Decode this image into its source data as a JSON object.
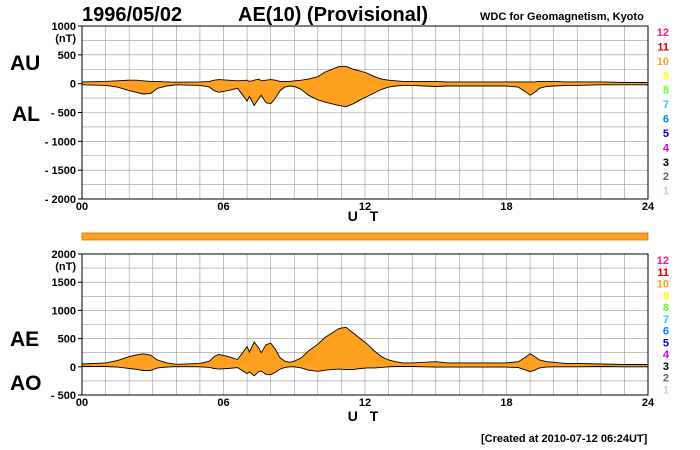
{
  "header": {
    "date": "1996/05/02",
    "title": "AE(10) (Provisional)",
    "source": "WDC for Geomagnetism, Kyoto"
  },
  "footer": {
    "created": "[Created at 2010-07-12 06:24UT]"
  },
  "colors": {
    "fill": "#ffa020",
    "bar": "#ffa020",
    "grid": "#999999",
    "line": "#000000"
  },
  "level_scale": [
    {
      "label": "12",
      "color": "#ff1493"
    },
    {
      "label": "11",
      "color": "#e00000"
    },
    {
      "label": "10",
      "color": "#ffa020"
    },
    {
      "label": "9",
      "color": "#ffff00"
    },
    {
      "label": "8",
      "color": "#66ff33"
    },
    {
      "label": "7",
      "color": "#33ccff"
    },
    {
      "label": "6",
      "color": "#0080ff"
    },
    {
      "label": "5",
      "color": "#0000cc"
    },
    {
      "label": "4",
      "color": "#cc00cc"
    },
    {
      "label": "3",
      "color": "#000000"
    },
    {
      "label": "2",
      "color": "#666666"
    },
    {
      "label": "1",
      "color": "#cccccc"
    }
  ],
  "chart_data": [
    {
      "type": "area",
      "panel": "top",
      "unit_label": "(nT)",
      "side_labels": [
        "AU",
        "AL"
      ],
      "xlabel": "U T",
      "xlim": [
        0,
        24
      ],
      "ylim": [
        -2000,
        1000
      ],
      "x_ticks": [
        "00",
        "06",
        "12",
        "18",
        "24"
      ],
      "y_ticks": [
        "1000",
        "500",
        "0",
        "- 500",
        "- 1000",
        "- 1500",
        "- 2000"
      ],
      "x": [
        0,
        1,
        1.5,
        2,
        2.3,
        2.6,
        2.9,
        3.2,
        3.6,
        4,
        5,
        5.4,
        5.6,
        5.8,
        6.2,
        6.6,
        7,
        7.1,
        7.3,
        7.5,
        7.6,
        7.8,
        8,
        8.2,
        8.4,
        8.6,
        8.8,
        9,
        9.3,
        9.6,
        10,
        10.3,
        10.6,
        10.9,
        11.2,
        11.5,
        11.8,
        12.1,
        12.4,
        12.7,
        13,
        13.3,
        13.6,
        14,
        14.5,
        15,
        15.5,
        16,
        16.5,
        17,
        17.5,
        18,
        18.5,
        18.8,
        19,
        19.2,
        19.4,
        19.7,
        20,
        20.5,
        21,
        22,
        23,
        24
      ],
      "series": [
        {
          "name": "AU",
          "values": [
            30,
            40,
            50,
            60,
            60,
            50,
            40,
            40,
            30,
            25,
            30,
            40,
            60,
            70,
            60,
            50,
            60,
            40,
            60,
            80,
            50,
            60,
            70,
            60,
            40,
            40,
            40,
            50,
            60,
            80,
            120,
            200,
            250,
            300,
            300,
            250,
            220,
            180,
            120,
            80,
            60,
            50,
            40,
            40,
            40,
            40,
            30,
            30,
            30,
            30,
            30,
            30,
            30,
            30,
            30,
            30,
            40,
            40,
            40,
            30,
            30,
            30,
            20,
            20
          ]
        },
        {
          "name": "AL",
          "values": [
            -20,
            -30,
            -60,
            -120,
            -150,
            -180,
            -170,
            -80,
            -40,
            -20,
            -30,
            -60,
            -120,
            -150,
            -120,
            -80,
            -300,
            -220,
            -380,
            -250,
            -200,
            -330,
            -350,
            -250,
            -120,
            -60,
            -40,
            -50,
            -100,
            -200,
            -280,
            -320,
            -350,
            -380,
            -400,
            -350,
            -280,
            -220,
            -160,
            -100,
            -60,
            -40,
            -30,
            -30,
            -40,
            -50,
            -40,
            -40,
            -40,
            -40,
            -40,
            -40,
            -60,
            -140,
            -200,
            -150,
            -80,
            -50,
            -40,
            -30,
            -30,
            -20,
            -20,
            -20
          ]
        }
      ]
    },
    {
      "type": "area",
      "panel": "bottom",
      "unit_label": "(nT)",
      "side_labels": [
        "AE",
        "AO"
      ],
      "xlabel": "U T",
      "xlim": [
        0,
        24
      ],
      "ylim": [
        -500,
        2000
      ],
      "x_ticks": [
        "00",
        "06",
        "12",
        "18",
        "24"
      ],
      "y_ticks": [
        "2000",
        "1500",
        "1000",
        "500",
        "0",
        "- 500"
      ],
      "x": [
        0,
        1,
        1.5,
        2,
        2.3,
        2.6,
        2.9,
        3.2,
        3.6,
        4,
        5,
        5.4,
        5.6,
        5.8,
        6.2,
        6.6,
        7,
        7.1,
        7.3,
        7.5,
        7.6,
        7.8,
        8,
        8.2,
        8.4,
        8.6,
        8.8,
        9,
        9.3,
        9.6,
        10,
        10.3,
        10.6,
        10.9,
        11.2,
        11.5,
        11.8,
        12.1,
        12.4,
        12.7,
        13,
        13.3,
        13.6,
        14,
        14.5,
        15,
        15.5,
        16,
        16.5,
        17,
        17.5,
        18,
        18.5,
        18.8,
        19,
        19.2,
        19.4,
        19.7,
        20,
        20.5,
        21,
        22,
        23,
        24
      ],
      "series": [
        {
          "name": "AE",
          "values": [
            50,
            70,
            110,
            180,
            210,
            230,
            210,
            120,
            70,
            45,
            60,
            100,
            180,
            220,
            180,
            130,
            360,
            260,
            440,
            330,
            250,
            390,
            420,
            310,
            160,
            100,
            80,
            100,
            160,
            280,
            400,
            520,
            600,
            680,
            700,
            600,
            500,
            400,
            280,
            180,
            120,
            90,
            70,
            70,
            80,
            90,
            70,
            70,
            70,
            70,
            70,
            70,
            90,
            170,
            230,
            180,
            120,
            90,
            80,
            60,
            60,
            50,
            40,
            40
          ]
        },
        {
          "name": "AO",
          "values": [
            5,
            5,
            -5,
            -30,
            -45,
            -65,
            -65,
            -20,
            -5,
            3,
            0,
            -10,
            -30,
            -40,
            -30,
            -15,
            -120,
            -90,
            -160,
            -85,
            -75,
            -135,
            -140,
            -95,
            -40,
            -10,
            0,
            0,
            -20,
            -60,
            -80,
            -60,
            -50,
            -40,
            -50,
            -50,
            -30,
            -20,
            -20,
            -10,
            0,
            5,
            5,
            5,
            0,
            -5,
            -5,
            -5,
            -5,
            -5,
            -5,
            -5,
            -15,
            -55,
            -85,
            -60,
            -20,
            -5,
            0,
            0,
            0,
            5,
            0,
            0
          ]
        }
      ]
    }
  ]
}
